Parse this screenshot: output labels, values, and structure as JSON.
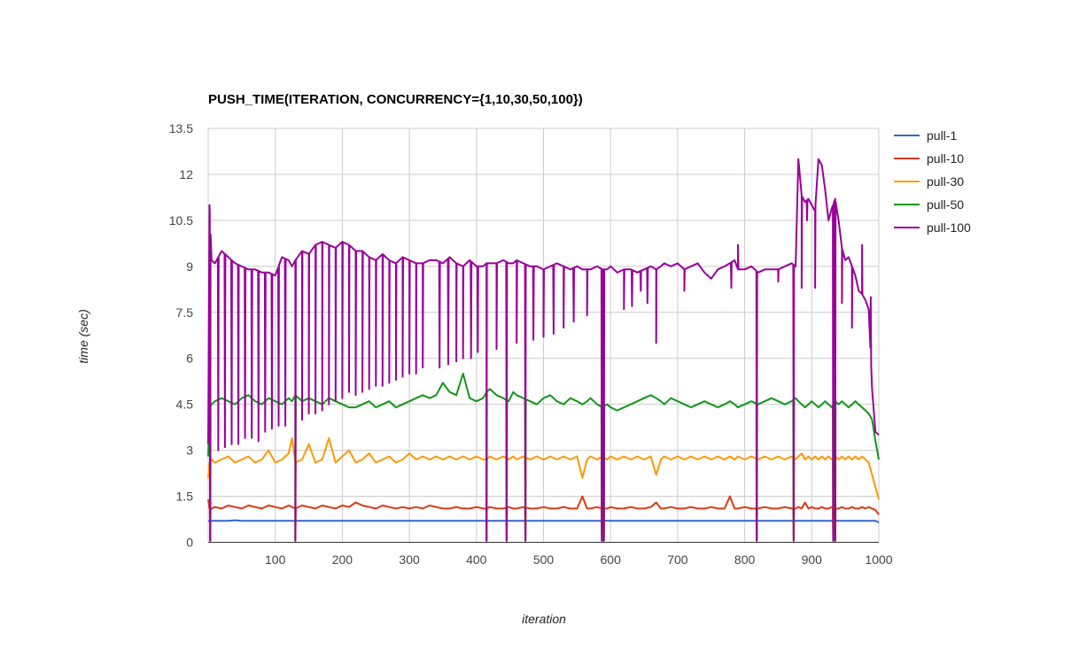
{
  "chart_data": {
    "type": "line",
    "title": "PUSH_TIME(ITERATION, CONCURRENCY={1,10,30,50,100})",
    "xlabel": "iteration",
    "ylabel": "time (sec)",
    "xlim": [
      0,
      1000
    ],
    "ylim": [
      0,
      13.5
    ],
    "x_ticks": [
      "100",
      "200",
      "300",
      "400",
      "500",
      "600",
      "700",
      "800",
      "900",
      "1000"
    ],
    "y_ticks": [
      "0",
      "1.5",
      "3",
      "4.5",
      "6",
      "7.5",
      "9",
      "10.5",
      "12",
      "13.5"
    ],
    "grid": true,
    "legend_position": "right",
    "x": [
      0,
      2,
      5,
      10,
      20,
      30,
      40,
      50,
      60,
      70,
      80,
      90,
      100,
      110,
      120,
      125,
      130,
      140,
      150,
      160,
      170,
      180,
      190,
      200,
      210,
      220,
      230,
      240,
      250,
      260,
      270,
      280,
      290,
      300,
      310,
      320,
      330,
      340,
      350,
      360,
      370,
      380,
      390,
      400,
      410,
      415,
      420,
      430,
      440,
      448,
      455,
      460,
      470,
      480,
      490,
      500,
      510,
      520,
      530,
      540,
      550,
      558,
      565,
      570,
      580,
      588,
      595,
      600,
      610,
      620,
      630,
      640,
      650,
      660,
      668,
      675,
      680,
      690,
      700,
      710,
      720,
      730,
      740,
      750,
      760,
      770,
      778,
      785,
      790,
      800,
      810,
      820,
      830,
      840,
      850,
      860,
      870,
      876,
      880,
      885,
      890,
      895,
      900,
      905,
      910,
      915,
      920,
      925,
      930,
      935,
      940,
      945,
      950,
      955,
      960,
      965,
      970,
      975,
      980,
      985,
      990,
      995,
      1000
    ],
    "series": [
      {
        "name": "pull-1",
        "color": "#3366cc",
        "values": [
          0.7,
          0.7,
          0.7,
          0.7,
          0.7,
          0.7,
          0.72,
          0.7,
          0.7,
          0.7,
          0.7,
          0.7,
          0.7,
          0.7,
          0.7,
          0.7,
          0.7,
          0.7,
          0.7,
          0.7,
          0.7,
          0.7,
          0.7,
          0.7,
          0.7,
          0.7,
          0.7,
          0.7,
          0.7,
          0.7,
          0.7,
          0.7,
          0.7,
          0.7,
          0.7,
          0.7,
          0.7,
          0.7,
          0.7,
          0.7,
          0.7,
          0.7,
          0.7,
          0.7,
          0.7,
          0.7,
          0.7,
          0.7,
          0.7,
          0.7,
          0.7,
          0.7,
          0.7,
          0.7,
          0.7,
          0.7,
          0.7,
          0.7,
          0.7,
          0.7,
          0.7,
          0.7,
          0.7,
          0.7,
          0.7,
          0.7,
          0.7,
          0.7,
          0.7,
          0.7,
          0.7,
          0.7,
          0.7,
          0.7,
          0.7,
          0.7,
          0.7,
          0.7,
          0.7,
          0.7,
          0.7,
          0.7,
          0.7,
          0.7,
          0.7,
          0.7,
          0.7,
          0.7,
          0.7,
          0.7,
          0.7,
          0.7,
          0.7,
          0.7,
          0.7,
          0.7,
          0.7,
          0.7,
          0.7,
          0.7,
          0.7,
          0.7,
          0.7,
          0.7,
          0.7,
          0.7,
          0.7,
          0.7,
          0.7,
          0.7,
          0.7,
          0.7,
          0.7,
          0.7,
          0.7,
          0.7,
          0.7,
          0.7,
          0.7,
          0.7,
          0.7,
          0.7,
          0.65
        ]
      },
      {
        "name": "pull-10",
        "color": "#dc3912",
        "values": [
          1.4,
          1.1,
          1.1,
          1.15,
          1.1,
          1.2,
          1.15,
          1.1,
          1.2,
          1.15,
          1.1,
          1.2,
          1.15,
          1.1,
          1.2,
          1.15,
          1.1,
          1.2,
          1.15,
          1.1,
          1.2,
          1.15,
          1.1,
          1.2,
          1.15,
          1.3,
          1.2,
          1.15,
          1.1,
          1.2,
          1.15,
          1.1,
          1.15,
          1.1,
          1.15,
          1.1,
          1.2,
          1.15,
          1.1,
          1.1,
          1.15,
          1.1,
          1.1,
          1.15,
          1.1,
          1.1,
          1.15,
          1.1,
          1.1,
          1.15,
          1.1,
          1.1,
          1.15,
          1.1,
          1.1,
          1.15,
          1.1,
          1.1,
          1.15,
          1.1,
          1.1,
          1.5,
          1.1,
          1.1,
          1.15,
          1.1,
          1.1,
          1.15,
          1.1,
          1.1,
          1.15,
          1.1,
          1.1,
          1.15,
          1.3,
          1.1,
          1.1,
          1.15,
          1.1,
          1.1,
          1.15,
          1.1,
          1.1,
          1.15,
          1.1,
          1.1,
          1.5,
          1.1,
          1.1,
          1.15,
          1.1,
          1.1,
          1.15,
          1.1,
          1.1,
          1.15,
          1.1,
          1.1,
          1.15,
          1.1,
          1.3,
          1.1,
          1.15,
          1.1,
          1.1,
          1.15,
          1.1,
          1.1,
          1.15,
          1.1,
          1.1,
          1.15,
          1.1,
          1.1,
          1.15,
          1.1,
          1.1,
          1.15,
          1.1,
          1.15,
          1.1,
          1.05,
          0.9
        ]
      },
      {
        "name": "pull-30",
        "color": "#ff9900",
        "values": [
          2.1,
          2.6,
          2.7,
          2.6,
          2.7,
          2.8,
          2.6,
          2.7,
          2.8,
          2.6,
          2.7,
          3.0,
          2.6,
          2.7,
          2.9,
          3.4,
          2.6,
          2.7,
          3.2,
          2.6,
          2.7,
          3.4,
          2.6,
          2.8,
          3.0,
          2.6,
          2.7,
          2.9,
          2.6,
          2.7,
          2.8,
          2.6,
          2.7,
          2.9,
          2.7,
          2.8,
          2.7,
          2.8,
          2.7,
          2.8,
          2.7,
          2.8,
          2.7,
          2.8,
          2.7,
          2.7,
          2.8,
          2.7,
          2.8,
          2.7,
          2.8,
          2.7,
          2.8,
          2.7,
          2.8,
          2.7,
          2.8,
          2.7,
          2.8,
          2.7,
          2.8,
          2.1,
          2.7,
          2.8,
          2.7,
          2.8,
          2.7,
          2.8,
          2.7,
          2.8,
          2.7,
          2.8,
          2.7,
          2.8,
          2.2,
          2.7,
          2.8,
          2.7,
          2.8,
          2.7,
          2.8,
          2.7,
          2.8,
          2.7,
          2.8,
          2.7,
          2.8,
          2.7,
          2.8,
          2.7,
          2.8,
          2.7,
          2.8,
          2.7,
          2.8,
          2.7,
          2.8,
          2.7,
          2.8,
          2.9,
          2.7,
          2.8,
          2.7,
          2.8,
          2.7,
          2.8,
          2.7,
          2.8,
          2.7,
          2.8,
          2.7,
          2.8,
          2.7,
          2.8,
          2.7,
          2.8,
          2.7,
          2.8,
          2.7,
          2.6,
          2.2,
          1.8,
          1.4
        ]
      },
      {
        "name": "pull-50",
        "color": "#109618",
        "values": [
          2.8,
          4.4,
          4.5,
          4.6,
          4.7,
          4.6,
          4.5,
          4.7,
          4.8,
          4.6,
          4.5,
          4.7,
          4.6,
          4.5,
          4.7,
          4.6,
          4.8,
          4.6,
          4.7,
          4.6,
          4.5,
          4.7,
          4.6,
          4.5,
          4.4,
          4.4,
          4.5,
          4.6,
          4.4,
          4.5,
          4.6,
          4.4,
          4.5,
          4.6,
          4.7,
          4.8,
          4.7,
          4.8,
          5.2,
          4.9,
          4.8,
          5.5,
          4.7,
          4.6,
          4.7,
          4.9,
          5.0,
          4.8,
          4.7,
          4.6,
          4.9,
          4.8,
          4.7,
          4.6,
          4.5,
          4.7,
          4.8,
          4.6,
          4.5,
          4.7,
          4.6,
          4.5,
          4.6,
          4.7,
          4.5,
          4.4,
          4.5,
          4.4,
          4.3,
          4.4,
          4.5,
          4.6,
          4.7,
          4.8,
          4.7,
          4.6,
          4.5,
          4.7,
          4.6,
          4.5,
          4.4,
          4.5,
          4.6,
          4.5,
          4.4,
          4.5,
          4.6,
          4.5,
          4.4,
          4.5,
          4.6,
          4.5,
          4.6,
          4.7,
          4.6,
          4.5,
          4.6,
          4.7,
          4.6,
          4.5,
          4.4,
          4.5,
          4.6,
          4.5,
          4.4,
          4.5,
          4.6,
          4.5,
          4.4,
          4.6,
          4.5,
          4.6,
          4.5,
          4.4,
          4.5,
          4.6,
          4.5,
          4.4,
          4.3,
          4.2,
          4.0,
          3.3,
          2.7
        ]
      },
      {
        "name": "pull-100",
        "color": "#990099",
        "values": [
          3.2,
          11.0,
          9.2,
          9.1,
          9.5,
          9.3,
          9.1,
          9.0,
          8.9,
          8.9,
          8.8,
          8.8,
          8.7,
          9.3,
          9.2,
          9.0,
          9.2,
          9.5,
          9.4,
          9.7,
          9.8,
          9.7,
          9.6,
          9.8,
          9.7,
          9.5,
          9.5,
          9.3,
          9.2,
          9.4,
          9.2,
          9.1,
          9.3,
          9.2,
          9.1,
          9.1,
          9.2,
          9.2,
          9.1,
          9.3,
          9.1,
          9.0,
          9.2,
          9.0,
          9.0,
          9.1,
          9.1,
          9.1,
          9.2,
          9.1,
          9.1,
          9.2,
          9.1,
          9.0,
          9.0,
          8.9,
          9.0,
          9.1,
          9.0,
          8.9,
          9.0,
          8.9,
          8.9,
          8.9,
          9.0,
          8.9,
          8.9,
          9.0,
          8.8,
          8.9,
          8.9,
          8.8,
          8.9,
          9.0,
          8.9,
          9.0,
          9.1,
          9.0,
          9.1,
          8.9,
          9.0,
          9.1,
          8.8,
          8.6,
          8.9,
          9.0,
          9.1,
          9.2,
          8.9,
          8.9,
          9.0,
          8.8,
          8.9,
          8.9,
          8.9,
          9.0,
          9.1,
          9.0,
          12.5,
          11.3,
          11.1,
          11.2,
          11.0,
          10.8,
          12.5,
          12.3,
          11.5,
          10.5,
          10.9,
          11.2,
          10.5,
          9.6,
          9.2,
          9.3,
          9.0,
          8.7,
          8.2,
          8.1,
          7.9,
          7.6,
          5.0,
          3.6,
          3.5
        ]
      }
    ],
    "dips": [
      {
        "x": 3,
        "series": [
          "pull-10",
          "pull-30",
          "pull-50",
          "pull-100"
        ],
        "y": 0.05
      },
      {
        "x": 130,
        "series": [
          "pull-10",
          "pull-30",
          "pull-50",
          "pull-100"
        ],
        "y": 0.05
      },
      {
        "x": 415,
        "series": [
          "pull-10",
          "pull-30",
          "pull-50",
          "pull-100"
        ],
        "y": 0.05
      },
      {
        "x": 445,
        "series": [
          "pull-10",
          "pull-30",
          "pull-50",
          "pull-100"
        ],
        "y": 0.05
      },
      {
        "x": 473,
        "series": [
          "pull-10",
          "pull-30",
          "pull-50",
          "pull-100"
        ],
        "y": 0.05
      },
      {
        "x": 587,
        "series": [
          "pull-10",
          "pull-30",
          "pull-50",
          "pull-100"
        ],
        "y": 0.05
      },
      {
        "x": 590,
        "series": [
          "pull-10",
          "pull-30",
          "pull-50",
          "pull-100"
        ],
        "y": 0.05
      },
      {
        "x": 818,
        "series": [
          "pull-10",
          "pull-30",
          "pull-50",
          "pull-100"
        ],
        "y": 0.05
      },
      {
        "x": 873,
        "series": [
          "pull-10",
          "pull-30",
          "pull-50",
          "pull-100"
        ],
        "y": 0.05
      },
      {
        "x": 932,
        "series": [
          "pull-10",
          "pull-30",
          "pull-50",
          "pull-100"
        ],
        "y": 0.05
      },
      {
        "x": 935,
        "series": [
          "pull-10",
          "pull-30",
          "pull-50",
          "pull-100"
        ],
        "y": 0.05
      }
    ],
    "pull100_spikes_down": [
      {
        "x": 15,
        "y": 3.0
      },
      {
        "x": 25,
        "y": 3.1
      },
      {
        "x": 35,
        "y": 3.2
      },
      {
        "x": 45,
        "y": 3.2
      },
      {
        "x": 55,
        "y": 3.4
      },
      {
        "x": 65,
        "y": 3.4
      },
      {
        "x": 75,
        "y": 3.3
      },
      {
        "x": 85,
        "y": 3.6
      },
      {
        "x": 95,
        "y": 3.7
      },
      {
        "x": 105,
        "y": 3.8
      },
      {
        "x": 115,
        "y": 3.8
      },
      {
        "x": 140,
        "y": 4.0
      },
      {
        "x": 150,
        "y": 4.2
      },
      {
        "x": 160,
        "y": 4.2
      },
      {
        "x": 170,
        "y": 4.3
      },
      {
        "x": 180,
        "y": 4.5
      },
      {
        "x": 190,
        "y": 4.6
      },
      {
        "x": 200,
        "y": 4.7
      },
      {
        "x": 210,
        "y": 4.9
      },
      {
        "x": 220,
        "y": 4.8
      },
      {
        "x": 230,
        "y": 4.9
      },
      {
        "x": 240,
        "y": 5.0
      },
      {
        "x": 250,
        "y": 5.1
      },
      {
        "x": 260,
        "y": 5.1
      },
      {
        "x": 270,
        "y": 5.2
      },
      {
        "x": 280,
        "y": 5.3
      },
      {
        "x": 290,
        "y": 5.4
      },
      {
        "x": 300,
        "y": 5.5
      },
      {
        "x": 310,
        "y": 5.5
      },
      {
        "x": 320,
        "y": 5.7
      },
      {
        "x": 345,
        "y": 5.7
      },
      {
        "x": 358,
        "y": 5.8
      },
      {
        "x": 370,
        "y": 5.9
      },
      {
        "x": 380,
        "y": 6.0
      },
      {
        "x": 392,
        "y": 6.0
      },
      {
        "x": 402,
        "y": 6.2
      },
      {
        "x": 430,
        "y": 6.3
      },
      {
        "x": 460,
        "y": 6.5
      },
      {
        "x": 485,
        "y": 6.6
      },
      {
        "x": 500,
        "y": 6.7
      },
      {
        "x": 515,
        "y": 6.8
      },
      {
        "x": 530,
        "y": 7.0
      },
      {
        "x": 545,
        "y": 7.2
      },
      {
        "x": 565,
        "y": 7.4
      },
      {
        "x": 620,
        "y": 7.6
      },
      {
        "x": 632,
        "y": 7.7
      },
      {
        "x": 645,
        "y": 8.2
      },
      {
        "x": 655,
        "y": 7.8
      },
      {
        "x": 668,
        "y": 6.5
      },
      {
        "x": 710,
        "y": 8.2
      },
      {
        "x": 780,
        "y": 8.3
      },
      {
        "x": 790,
        "y": 9.7
      },
      {
        "x": 850,
        "y": 8.5
      },
      {
        "x": 885,
        "y": 8.3
      },
      {
        "x": 893,
        "y": 10.5
      },
      {
        "x": 905,
        "y": 8.3
      },
      {
        "x": 945,
        "y": 7.8
      },
      {
        "x": 960,
        "y": 7.0
      },
      {
        "x": 975,
        "y": 9.7
      },
      {
        "x": 988,
        "y": 8.0
      }
    ]
  }
}
